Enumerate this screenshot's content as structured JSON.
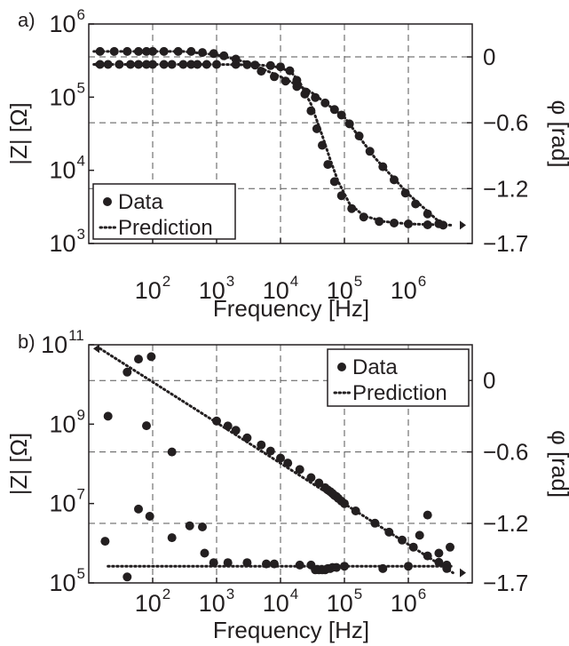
{
  "chart_data": [
    {
      "type": "scatter",
      "panel_label": "a)",
      "xlabel": "Frequency [Hz]",
      "ylabel_left": "|Z| [Ω]",
      "ylabel_right": "φ [rad]",
      "x_scale": "log",
      "xlim": [
        10,
        10000000
      ],
      "x_ticks": [
        {
          "value": 100,
          "base": "10",
          "exp": "2"
        },
        {
          "value": 1000,
          "base": "10",
          "exp": "3"
        },
        {
          "value": 10000,
          "base": "10",
          "exp": "4"
        },
        {
          "value": 100000,
          "base": "10",
          "exp": "5"
        },
        {
          "value": 1000000,
          "base": "10",
          "exp": "6"
        }
      ],
      "y_left_scale": "log",
      "ylim_left": [
        1000,
        1000000
      ],
      "y_left_ticks": [
        {
          "value": 1000,
          "base": "10",
          "exp": "3"
        },
        {
          "value": 10000,
          "base": "10",
          "exp": "4"
        },
        {
          "value": 100000,
          "base": "10",
          "exp": "5"
        },
        {
          "value": 1000000,
          "base": "10",
          "exp": "6"
        }
      ],
      "ylim_right": [
        -1.7,
        0.3
      ],
      "y_right_ticks": [
        {
          "value": 0,
          "label": "0"
        },
        {
          "value": -0.6,
          "label": "−0.6"
        },
        {
          "value": -1.2,
          "label": "−1.2"
        },
        {
          "value": -1.7,
          "label": "−1.7"
        }
      ],
      "grid": true,
      "legend": {
        "placement": "bottom-left",
        "data_label": "Data",
        "prediction_label": "Prediction"
      },
      "series": [
        {
          "name": "Data",
          "quantity": "|Z|",
          "axis": "left",
          "style": "markers",
          "points": [
            [
              15,
              280000
            ],
            [
              20,
              280000
            ],
            [
              30,
              280000
            ],
            [
              45,
              280000
            ],
            [
              60,
              280000
            ],
            [
              80,
              280000
            ],
            [
              100,
              280000
            ],
            [
              150,
              280000
            ],
            [
              200,
              280000
            ],
            [
              300,
              280000
            ],
            [
              400,
              280000
            ],
            [
              500,
              280000
            ],
            [
              700,
              280000
            ],
            [
              1000,
              280000
            ],
            [
              2000,
              280000
            ],
            [
              4000,
              275000
            ],
            [
              7000,
              270000
            ],
            [
              10000,
              260000
            ],
            [
              14000,
              230000
            ],
            [
              18000,
              170000
            ],
            [
              24000,
              110000
            ],
            [
              30000,
              65000
            ],
            [
              37000,
              37000
            ],
            [
              45000,
              22000
            ],
            [
              55000,
              12000
            ],
            [
              70000,
              7000
            ],
            [
              90000,
              4500
            ],
            [
              130000,
              3000
            ],
            [
              200000,
              2300
            ],
            [
              350000,
              2000
            ],
            [
              600000,
              1900
            ],
            [
              1000000,
              1850
            ],
            [
              2000000,
              1800
            ],
            [
              3500000,
              1780
            ]
          ]
        },
        {
          "name": "Prediction",
          "quantity": "|Z|",
          "axis": "left",
          "style": "dotted",
          "points": [
            [
              12,
              280000
            ],
            [
              100,
              280000
            ],
            [
              1000,
              280000
            ],
            [
              5000,
              275000
            ],
            [
              10000,
              255000
            ],
            [
              15000,
              215000
            ],
            [
              20000,
              160000
            ],
            [
              30000,
              80000
            ],
            [
              45000,
              30000
            ],
            [
              60000,
              14000
            ],
            [
              80000,
              7000
            ],
            [
              120000,
              3500
            ],
            [
              200000,
              2400
            ],
            [
              400000,
              2000
            ],
            [
              1000000,
              1850
            ],
            [
              5000000,
              1780
            ]
          ]
        },
        {
          "name": "Data",
          "quantity": "phase",
          "axis": "right",
          "style": "markers",
          "points": [
            [
              15,
              0.05
            ],
            [
              25,
              0.05
            ],
            [
              40,
              0.05
            ],
            [
              60,
              0.05
            ],
            [
              80,
              0.05
            ],
            [
              100,
              0.05
            ],
            [
              150,
              0.05
            ],
            [
              250,
              0.05
            ],
            [
              400,
              0.05
            ],
            [
              600,
              0.04
            ],
            [
              900,
              0.03
            ],
            [
              1300,
              0.01
            ],
            [
              2000,
              -0.02
            ],
            [
              3000,
              -0.07
            ],
            [
              5000,
              -0.13
            ],
            [
              8000,
              -0.18
            ],
            [
              12000,
              -0.22
            ],
            [
              18000,
              -0.27
            ],
            [
              25000,
              -0.32
            ],
            [
              35000,
              -0.37
            ],
            [
              50000,
              -0.42
            ],
            [
              70000,
              -0.48
            ],
            [
              90000,
              -0.53
            ],
            [
              120000,
              -0.61
            ],
            [
              170000,
              -0.72
            ],
            [
              250000,
              -0.86
            ],
            [
              400000,
              -1.0
            ],
            [
              600000,
              -1.12
            ],
            [
              900000,
              -1.24
            ],
            [
              1300000,
              -1.34
            ],
            [
              2000000,
              -1.43
            ],
            [
              3000000,
              -1.52
            ]
          ]
        },
        {
          "name": "Prediction",
          "quantity": "phase",
          "axis": "right",
          "style": "dotted",
          "points": [
            [
              12,
              0.05
            ],
            [
              300,
              0.05
            ],
            [
              1000,
              0.02
            ],
            [
              3000,
              -0.05
            ],
            [
              10000,
              -0.18
            ],
            [
              30000,
              -0.32
            ],
            [
              100000,
              -0.55
            ],
            [
              300000,
              -0.92
            ],
            [
              1000000,
              -1.25
            ],
            [
              3000000,
              -1.5
            ]
          ]
        }
      ],
      "axis_markers": [
        {
          "side": "left",
          "value": 280000,
          "symbol": "◀"
        },
        {
          "side": "right",
          "value": 1780,
          "symbol": "▶"
        }
      ]
    },
    {
      "type": "scatter",
      "panel_label": "b)",
      "xlabel": "Frequency [Hz]",
      "ylabel_left": "|Z| [Ω]",
      "ylabel_right": "φ [rad]",
      "x_scale": "log",
      "xlim": [
        10,
        10000000
      ],
      "x_ticks": [
        {
          "value": 100,
          "base": "10",
          "exp": "2"
        },
        {
          "value": 1000,
          "base": "10",
          "exp": "3"
        },
        {
          "value": 10000,
          "base": "10",
          "exp": "4"
        },
        {
          "value": 100000,
          "base": "10",
          "exp": "5"
        },
        {
          "value": 1000000,
          "base": "10",
          "exp": "6"
        }
      ],
      "y_left_scale": "log",
      "ylim_left": [
        100000,
        100000000000
      ],
      "y_left_ticks": [
        {
          "value": 100000,
          "base": "10",
          "exp": "5"
        },
        {
          "value": 10000000,
          "base": "10",
          "exp": "7"
        },
        {
          "value": 1000000000,
          "base": "10",
          "exp": "9"
        },
        {
          "value": 100000000000,
          "base": "10",
          "exp": "11"
        }
      ],
      "ylim_right": [
        -1.7,
        0.3
      ],
      "y_right_ticks": [
        {
          "value": 0,
          "label": "0"
        },
        {
          "value": -0.6,
          "label": "−0.6"
        },
        {
          "value": -1.2,
          "label": "−1.2"
        },
        {
          "value": -1.7,
          "label": "−1.7"
        }
      ],
      "grid": true,
      "legend": {
        "placement": "top-right",
        "data_label": "Data",
        "prediction_label": "Prediction"
      },
      "series": [
        {
          "name": "Data",
          "quantity": "|Z|",
          "axis": "left",
          "style": "markers",
          "points": [
            [
              1000,
              1200000000
            ],
            [
              1500,
              900000000
            ],
            [
              2000,
              700000000
            ],
            [
              3000,
              450000000
            ],
            [
              5000,
              300000000
            ],
            [
              7000,
              210000000
            ],
            [
              10000,
              140000000
            ],
            [
              13000,
              105000000
            ],
            [
              20000,
              72000000
            ],
            [
              30000,
              45000000
            ],
            [
              40000,
              33000000
            ],
            [
              50000,
              25000000
            ],
            [
              55000,
              22000000
            ],
            [
              60000,
              20000000
            ],
            [
              65000,
              18000000
            ],
            [
              70000,
              16000000
            ],
            [
              75000,
              15000000
            ],
            [
              80000,
              13500000
            ],
            [
              90000,
              11500000
            ],
            [
              100000,
              10000000
            ],
            [
              150000,
              6500000
            ],
            [
              300000,
              3200000
            ],
            [
              500000,
              1900000
            ],
            [
              800000,
              1200000
            ],
            [
              1200000,
              800000
            ],
            [
              2000000,
              480000
            ],
            [
              3000000,
              330000
            ],
            [
              4000000,
              230000
            ]
          ]
        },
        {
          "name": "Prediction",
          "quantity": "|Z|",
          "axis": "left",
          "style": "dotted",
          "points": [
            [
              15,
              80000000000
            ],
            [
              5000000,
              180000
            ]
          ]
        },
        {
          "name": "Data",
          "quantity": "phase",
          "axis": "right",
          "style": "markers",
          "points": [
            [
              18,
              -1.35
            ],
            [
              20,
              -0.3
            ],
            [
              40,
              0.07
            ],
            [
              40,
              -1.65
            ],
            [
              60,
              -1.08
            ],
            [
              60,
              0.18
            ],
            [
              80,
              -0.38
            ],
            [
              90,
              -1.14
            ],
            [
              95,
              0.2
            ],
            [
              200,
              -0.6
            ],
            [
              200,
              -1.32
            ],
            [
              380,
              -1.22
            ],
            [
              600,
              -1.23
            ],
            [
              650,
              -1.45
            ],
            [
              900,
              -1.53
            ],
            [
              1500,
              -1.53
            ],
            [
              3000,
              -1.53
            ],
            [
              6000,
              -1.54
            ],
            [
              8000,
              -1.54
            ],
            [
              20000,
              -1.55
            ],
            [
              30000,
              -1.55
            ],
            [
              35000,
              -1.59
            ],
            [
              40000,
              -1.59
            ],
            [
              45000,
              -1.59
            ],
            [
              50000,
              -1.59
            ],
            [
              55000,
              -1.58
            ],
            [
              60000,
              -1.58
            ],
            [
              65000,
              -1.57
            ],
            [
              75000,
              -1.57
            ],
            [
              100000,
              -1.56
            ],
            [
              400000,
              -1.58
            ],
            [
              1000000,
              -1.56
            ],
            [
              1500000,
              -1.3
            ],
            [
              2000000,
              -1.13
            ],
            [
              3000000,
              -1.45
            ],
            [
              4000000,
              -1.55
            ],
            [
              4500000,
              -1.4
            ]
          ]
        },
        {
          "name": "Prediction",
          "quantity": "phase",
          "axis": "right",
          "style": "dotted",
          "points": [
            [
              20,
              -1.56
            ],
            [
              5000000,
              -1.56
            ]
          ]
        }
      ],
      "axis_markers": [
        {
          "side": "left",
          "value": 80000000000,
          "symbol": "◀"
        },
        {
          "side": "right",
          "value": 180000,
          "symbol": "▶"
        }
      ]
    }
  ]
}
